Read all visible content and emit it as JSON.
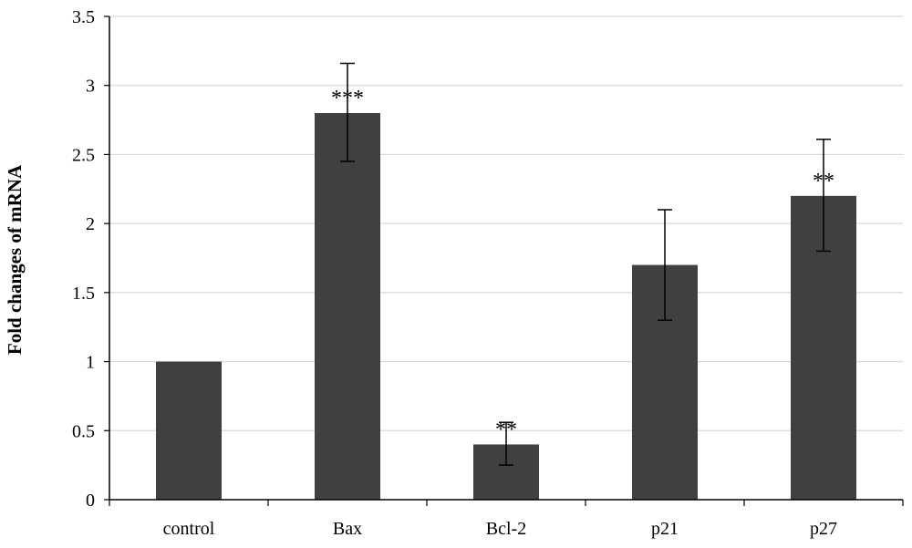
{
  "chart_data": {
    "type": "bar",
    "title": "",
    "xlabel": "",
    "ylabel": "Fold changes of mRNA",
    "categories": [
      "control",
      "Bax",
      "Bcl-2",
      "p21",
      "p27"
    ],
    "values": [
      1.0,
      2.8,
      0.4,
      1.7,
      2.2
    ],
    "error_low": [
      1.0,
      2.45,
      0.25,
      1.3,
      1.8
    ],
    "error_high": [
      1.0,
      3.16,
      0.56,
      2.1,
      2.61
    ],
    "significance": [
      "",
      "***",
      "**",
      "",
      "**"
    ],
    "ylim": [
      0,
      3.5
    ],
    "yticks": [
      "0",
      "0.5",
      "1",
      "1.5",
      "2",
      "2.5",
      "3",
      "3.5"
    ],
    "ytick_values": [
      0,
      0.5,
      1,
      1.5,
      2,
      2.5,
      3,
      3.5
    ],
    "bar_color": "#404040",
    "grid": true,
    "grid_color": "#d9d9d9",
    "legend": "none"
  }
}
